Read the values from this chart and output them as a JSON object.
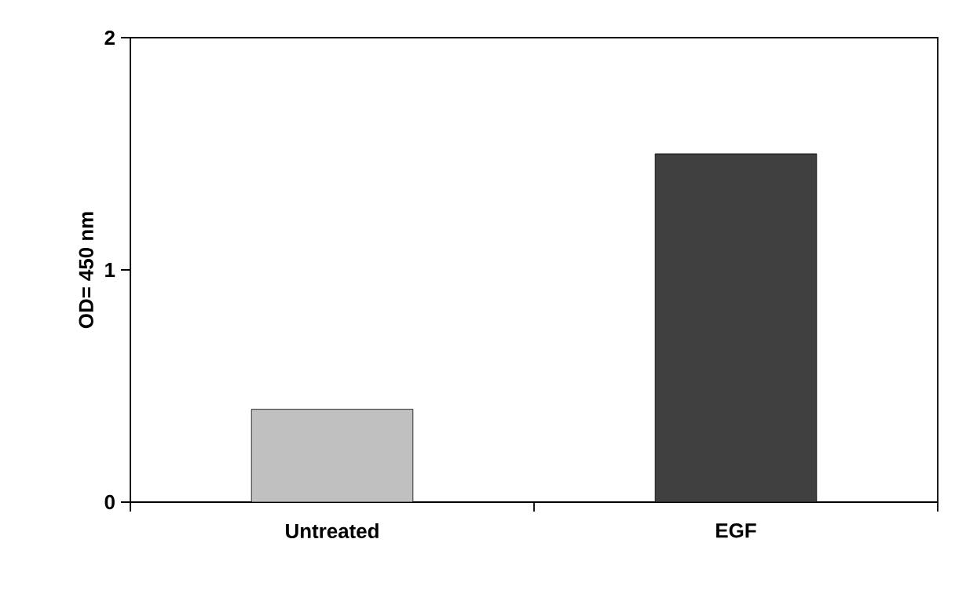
{
  "chart_data": {
    "type": "bar",
    "ylabel": "OD= 450 nm",
    "categories": [
      "Untreated",
      "EGF"
    ],
    "values": [
      0.4,
      1.5
    ],
    "colors": [
      "#c0c0c0",
      "#404040"
    ],
    "ylim": [
      0,
      2
    ],
    "yticks": [
      0,
      1,
      2
    ],
    "grid": false
  }
}
